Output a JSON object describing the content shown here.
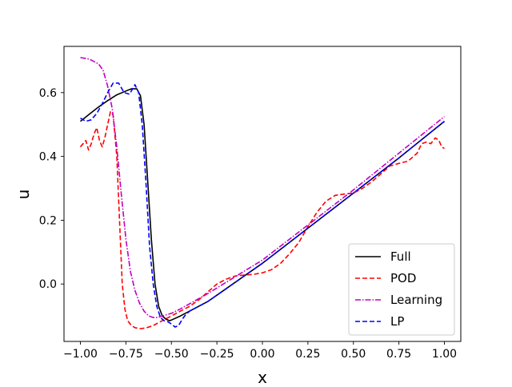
{
  "chart_data": {
    "type": "line",
    "title": "",
    "xlabel": "x",
    "ylabel": "u",
    "xlim": [
      -1.09,
      1.09
    ],
    "ylim": [
      -0.18,
      0.745
    ],
    "xticks": [
      -1.0,
      -0.75,
      -0.5,
      -0.25,
      0.0,
      0.25,
      0.5,
      0.75,
      1.0
    ],
    "xtick_labels": [
      "−1.00",
      "−0.75",
      "−0.50",
      "−0.25",
      "0.00",
      "0.25",
      "0.50",
      "0.75",
      "1.00"
    ],
    "yticks": [
      0.0,
      0.2,
      0.4,
      0.6
    ],
    "ytick_labels": [
      "0.0",
      "0.2",
      "0.4",
      "0.6"
    ],
    "grid": false,
    "legend": "bottom-right",
    "series": [
      {
        "name": "Full",
        "color": "#000000",
        "style": "solid",
        "x": [
          -1.0,
          -0.95,
          -0.9,
          -0.85,
          -0.8,
          -0.75,
          -0.72,
          -0.69,
          -0.67,
          -0.65,
          -0.63,
          -0.61,
          -0.59,
          -0.57,
          -0.55,
          -0.53,
          -0.51,
          -0.5,
          -0.45,
          -0.4,
          -0.3,
          -0.2,
          -0.1,
          0.0,
          0.25,
          0.5,
          0.75,
          1.0
        ],
        "y": [
          0.51,
          0.533,
          0.555,
          0.575,
          0.593,
          0.605,
          0.612,
          0.612,
          0.59,
          0.5,
          0.32,
          0.14,
          0.0,
          -0.07,
          -0.1,
          -0.11,
          -0.115,
          -0.113,
          -0.1,
          -0.085,
          -0.055,
          -0.015,
          0.025,
          0.065,
          0.175,
          0.285,
          0.395,
          0.51
        ]
      },
      {
        "name": "POD",
        "color": "#ff0000",
        "style": "dashed",
        "x": [
          -1.0,
          -0.985,
          -0.97,
          -0.955,
          -0.94,
          -0.925,
          -0.91,
          -0.895,
          -0.88,
          -0.865,
          -0.85,
          -0.835,
          -0.82,
          -0.8,
          -0.785,
          -0.77,
          -0.755,
          -0.74,
          -0.72,
          -0.7,
          -0.67,
          -0.64,
          -0.6,
          -0.55,
          -0.5,
          -0.45,
          -0.4,
          -0.35,
          -0.3,
          -0.25,
          -0.2,
          -0.15,
          -0.1,
          -0.05,
          0.0,
          0.05,
          0.1,
          0.15,
          0.2,
          0.25,
          0.3,
          0.35,
          0.4,
          0.45,
          0.5,
          0.55,
          0.6,
          0.65,
          0.7,
          0.75,
          0.8,
          0.85,
          0.875,
          0.9,
          0.925,
          0.95,
          0.97,
          0.985,
          1.0
        ],
        "y": [
          0.43,
          0.44,
          0.45,
          0.42,
          0.44,
          0.47,
          0.49,
          0.45,
          0.43,
          0.46,
          0.5,
          0.54,
          0.53,
          0.4,
          0.2,
          0.0,
          -0.08,
          -0.115,
          -0.13,
          -0.137,
          -0.14,
          -0.138,
          -0.13,
          -0.115,
          -0.1,
          -0.085,
          -0.07,
          -0.05,
          -0.025,
          0.0,
          0.015,
          0.025,
          0.028,
          0.03,
          0.035,
          0.045,
          0.065,
          0.095,
          0.13,
          0.18,
          0.225,
          0.26,
          0.278,
          0.282,
          0.285,
          0.3,
          0.32,
          0.345,
          0.37,
          0.378,
          0.385,
          0.41,
          0.44,
          0.445,
          0.44,
          0.458,
          0.45,
          0.43,
          0.425
        ]
      },
      {
        "name": "Learning",
        "color": "#c000c0",
        "style": "dashdot",
        "x": [
          -1.0,
          -0.95,
          -0.9,
          -0.875,
          -0.85,
          -0.825,
          -0.8,
          -0.775,
          -0.75,
          -0.725,
          -0.7,
          -0.675,
          -0.65,
          -0.625,
          -0.6,
          -0.575,
          -0.55,
          -0.5,
          -0.45,
          -0.4,
          -0.3,
          -0.2,
          -0.1,
          0.0,
          0.25,
          0.5,
          0.75,
          1.0
        ],
        "y": [
          0.71,
          0.705,
          0.69,
          0.67,
          0.62,
          0.55,
          0.43,
          0.28,
          0.14,
          0.04,
          -0.02,
          -0.06,
          -0.085,
          -0.1,
          -0.105,
          -0.105,
          -0.1,
          -0.092,
          -0.078,
          -0.062,
          -0.03,
          0.005,
          0.04,
          0.075,
          0.185,
          0.295,
          0.41,
          0.525
        ]
      },
      {
        "name": "LP",
        "color": "#0000ff",
        "style": "dashed",
        "x": [
          -1.0,
          -0.97,
          -0.94,
          -0.91,
          -0.88,
          -0.85,
          -0.82,
          -0.79,
          -0.76,
          -0.73,
          -0.7,
          -0.68,
          -0.66,
          -0.64,
          -0.62,
          -0.6,
          -0.58,
          -0.56,
          -0.54,
          -0.52,
          -0.5,
          -0.48,
          -0.46,
          -0.44,
          -0.42,
          -0.4,
          -0.3,
          -0.2,
          -0.1,
          0.0,
          0.25,
          0.5,
          0.75,
          1.0
        ],
        "y": [
          0.52,
          0.51,
          0.515,
          0.535,
          0.565,
          0.6,
          0.63,
          0.63,
          0.6,
          0.595,
          0.625,
          0.6,
          0.5,
          0.32,
          0.12,
          0.0,
          -0.07,
          -0.105,
          -0.115,
          -0.118,
          -0.125,
          -0.135,
          -0.13,
          -0.11,
          -0.095,
          -0.085,
          -0.055,
          -0.015,
          0.025,
          0.065,
          0.175,
          0.285,
          0.395,
          0.51
        ]
      }
    ]
  }
}
